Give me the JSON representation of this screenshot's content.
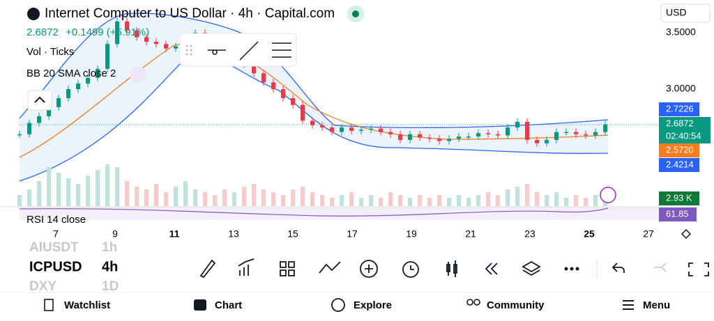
{
  "header": {
    "title": "Internet Computer to US Dollar · 4h · Capital.com",
    "currency": "USD"
  },
  "legend": {
    "price": "2.6872",
    "change": "+0.1499 (+5.91%)",
    "vol": "Vol · Ticks",
    "bb": "BB 20 SMA close 2",
    "rsi": "RSI 14 close"
  },
  "price_axis": {
    "labels": [
      "3.5000",
      "3.0000"
    ]
  },
  "badges": {
    "upper": "2.7226",
    "last": "2.6872",
    "countdown": "02:40:54",
    "basis": "2.5720",
    "lower": "2.4214",
    "volume": "2.93 K",
    "rsi": "61.85"
  },
  "dates": [
    "7",
    "9",
    "11",
    "13",
    "15",
    "17",
    "19",
    "21",
    "23",
    "25",
    "27"
  ],
  "chart": {
    "closes": [
      2.6,
      2.7,
      2.76,
      2.84,
      2.92,
      3.0,
      3.05,
      3.1,
      3.18,
      3.4,
      3.6,
      3.52,
      3.46,
      3.42,
      3.4,
      3.36,
      3.38,
      3.45,
      3.5,
      3.38,
      3.3,
      3.24,
      3.26,
      3.22,
      3.14,
      3.06,
      3.0,
      2.92,
      2.86,
      2.72,
      2.68,
      2.66,
      2.62,
      2.66,
      2.63,
      2.64,
      2.65,
      2.62,
      2.6,
      2.55,
      2.6,
      2.57,
      2.56,
      2.54,
      2.56,
      2.58,
      2.58,
      2.61,
      2.6,
      2.59,
      2.66,
      2.71,
      2.55,
      2.52,
      2.55,
      2.62,
      2.62,
      2.6,
      2.59,
      2.62,
      2.6872
    ],
    "volumes": [
      4,
      6,
      9,
      14,
      12,
      10,
      8,
      11,
      13,
      15,
      14,
      9,
      7,
      6,
      8,
      5,
      7,
      9,
      6,
      5,
      4,
      6,
      5,
      7,
      8,
      6,
      5,
      4,
      6,
      7,
      5,
      4,
      3,
      4,
      5,
      3,
      4,
      3,
      5,
      4,
      3,
      4,
      3,
      4,
      3,
      4,
      3,
      4,
      5,
      4,
      6,
      7,
      8,
      5,
      4,
      5,
      3,
      4,
      3,
      4,
      3
    ]
  },
  "watch": {
    "symbols": [
      "AIUSDT",
      "ICPUSD",
      "DXY"
    ],
    "intervals": [
      "1h",
      "4h",
      "1D"
    ]
  },
  "nav": [
    "Watchlist",
    "Chart",
    "Explore",
    "Community",
    "Menu"
  ]
}
